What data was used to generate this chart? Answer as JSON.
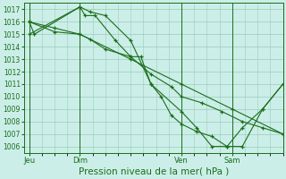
{
  "bg_color": "#cceee8",
  "grid_color": "#99ccbb",
  "line_color": "#1a6e1a",
  "title": "Pression niveau de la mer( hPa )",
  "title_fontsize": 7.5,
  "ylim": [
    1005.5,
    1017.5
  ],
  "yticks": [
    1006,
    1007,
    1008,
    1009,
    1010,
    1011,
    1012,
    1013,
    1014,
    1015,
    1016,
    1017
  ],
  "xtick_labels": [
    "Jeu",
    "Dim",
    "Ven",
    "Sam"
  ],
  "xtick_positions": [
    0,
    30,
    90,
    120
  ],
  "vline_positions": [
    0,
    30,
    90,
    120
  ],
  "xlim": [
    -3,
    150
  ],
  "line1_x": [
    0,
    3,
    30,
    33,
    39,
    51,
    60,
    66,
    72,
    90,
    99,
    108,
    117,
    126,
    138,
    150
  ],
  "line1_y": [
    1016.0,
    1015.0,
    1017.2,
    1016.5,
    1016.5,
    1014.5,
    1013.2,
    1013.2,
    1011.0,
    1008.8,
    1007.5,
    1006.0,
    1006.0,
    1007.5,
    1009.0,
    1011.0
  ],
  "line2_x": [
    0,
    15,
    30,
    36,
    45,
    60,
    72,
    84,
    90,
    102,
    114,
    126,
    138,
    150
  ],
  "line2_y": [
    1016.0,
    1015.2,
    1015.0,
    1014.6,
    1013.8,
    1013.2,
    1011.8,
    1010.8,
    1010.0,
    1009.5,
    1008.8,
    1008.0,
    1007.5,
    1007.0
  ],
  "line3_x": [
    0,
    15,
    30,
    60,
    90,
    120,
    150
  ],
  "line3_y": [
    1016.0,
    1015.5,
    1015.0,
    1013.0,
    1011.0,
    1009.0,
    1007.0
  ],
  "line4_x": [
    0,
    30,
    36,
    45,
    60,
    72,
    78,
    84,
    90,
    99,
    108,
    117,
    126,
    138,
    150
  ],
  "line4_y": [
    1015.0,
    1017.2,
    1016.8,
    1016.5,
    1014.5,
    1011.0,
    1010.0,
    1008.5,
    1007.8,
    1007.2,
    1006.8,
    1006.0,
    1006.0,
    1009.0,
    1011.0
  ]
}
